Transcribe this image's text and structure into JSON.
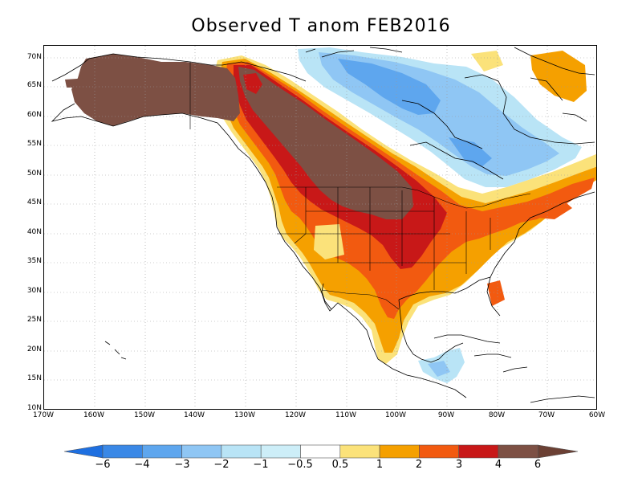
{
  "title": "Observed T anom FEB2016",
  "lat_labels": [
    "70N",
    "65N",
    "60N",
    "55N",
    "50N",
    "45N",
    "40N",
    "35N",
    "30N",
    "25N",
    "20N",
    "15N",
    "10N"
  ],
  "lon_labels": [
    "170W",
    "160W",
    "150W",
    "140W",
    "130W",
    "120W",
    "110W",
    "100W",
    "90W",
    "80W",
    "70W",
    "60W"
  ],
  "colorbar": {
    "labels": [
      "−6",
      "−4",
      "−3",
      "−2",
      "−1",
      "−0.5",
      "0.5",
      "1",
      "2",
      "3",
      "4",
      "6"
    ],
    "colors": [
      "#1e6fe0",
      "#3a88e6",
      "#5ea6ee",
      "#8fc6f4",
      "#b9e4f6",
      "#ffffff",
      "#fbe27a",
      "#f5a000",
      "#f25a10",
      "#c81818",
      "#990a0a",
      "#7d5044"
    ]
  },
  "map": {
    "lat_range": [
      10,
      71
    ],
    "lon_range": [
      -170,
      -60
    ],
    "grid": "dotted every 5° latitude and 10° longitude",
    "projection": "cylindrical lat/lon",
    "field": "surface temperature anomaly, FEB2016",
    "pattern": "strong warm anomalies (4–6) over Alaska, western Canada and the northern Plains; 1–4 across the contiguous US and northeastern US; cold anomalies (−0.5 to −2) over Hudson Bay, northern Quebec and southern Mexico / Central America"
  }
}
